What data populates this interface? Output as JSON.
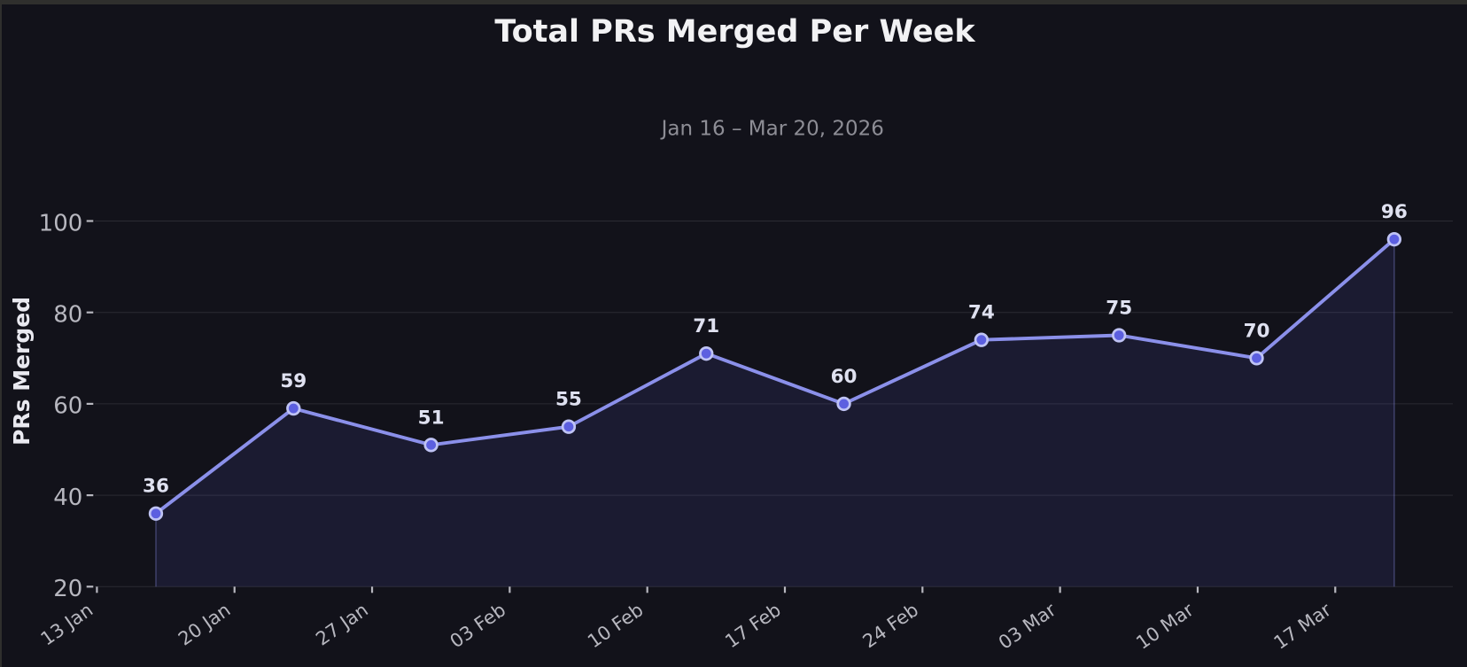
{
  "window": {
    "frame_color": "#2f2f2d",
    "background_color": "#12121a"
  },
  "chart_data": {
    "type": "line",
    "title": "Total PRs Merged Per Week",
    "subtitle": "Jan 16 – Mar 20, 2026",
    "xlabel": "",
    "ylabel": "PRs Merged",
    "categories": [
      "13 Jan",
      "20 Jan",
      "27 Jan",
      "03 Feb",
      "10 Feb",
      "17 Feb",
      "24 Feb",
      "03 Mar",
      "10 Mar",
      "17 Mar"
    ],
    "values": [
      36,
      59,
      51,
      55,
      71,
      60,
      74,
      75,
      70,
      96
    ],
    "point_offset_weeks": 0.4286,
    "y_ticks": [
      20,
      40,
      60,
      80,
      100
    ],
    "ylim": [
      20,
      115
    ],
    "grid": "horizontal",
    "legend_position": "none",
    "colors": {
      "line": "#8b90ea",
      "marker_fill": "#5c5fe0",
      "marker_edge": "#bfc3f4",
      "area_fill": "rgba(95,99,226,0.12)",
      "area_edge": "rgba(139,144,234,0.35)",
      "grid": "#2b2b33",
      "tick": "#b7b7bf",
      "title": "#f2f2f4",
      "subtitle": "#8d8d95",
      "axis_label": "#e9e9f0",
      "point_label": "#dfe1f0"
    }
  }
}
